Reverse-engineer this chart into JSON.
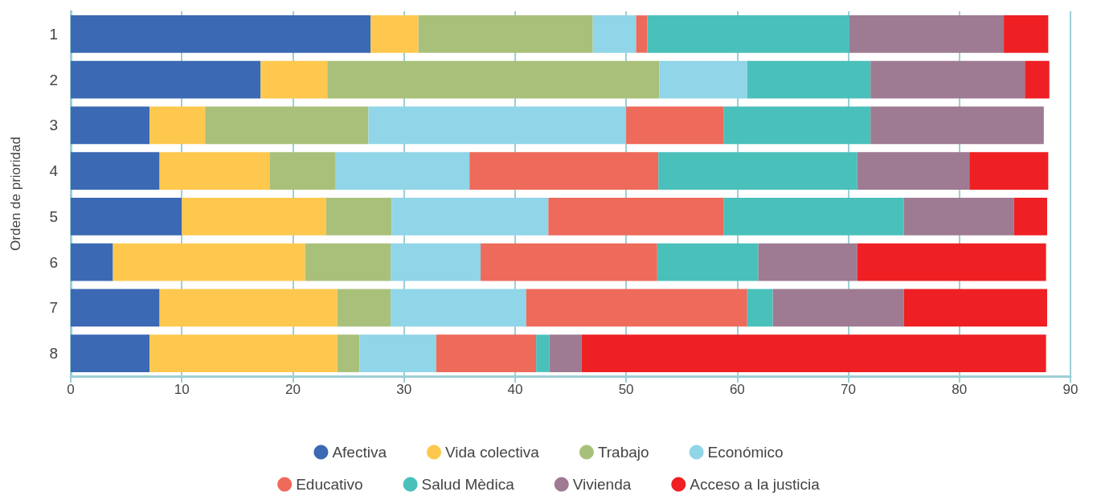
{
  "chart_data": {
    "type": "bar",
    "orientation": "horizontal",
    "stacked": true,
    "ylabel": "Orden de prioridad",
    "categories": [
      "1",
      "2",
      "3",
      "4",
      "5",
      "6",
      "7",
      "8"
    ],
    "series": [
      {
        "name": "Afectiva",
        "color": "#3b69b3",
        "values": [
          27,
          17.1,
          7.1,
          8.0,
          10.0,
          3.8,
          8.0,
          7.1
        ]
      },
      {
        "name": "Vida colectiva",
        "color": "#fec84e",
        "values": [
          4.3,
          6.0,
          5.0,
          9.9,
          13.0,
          17.3,
          16.0,
          16.9
        ]
      },
      {
        "name": "Trabajo",
        "color": "#a9c07a",
        "values": [
          15.7,
          29.9,
          14.7,
          5.9,
          5.9,
          7.7,
          4.8,
          2.0
        ]
      },
      {
        "name": "Económico",
        "color": "#90d5e8",
        "values": [
          3.9,
          7.9,
          23.2,
          12.1,
          14.1,
          8.1,
          12.2,
          6.9
        ]
      },
      {
        "name": "Educativo",
        "color": "#ee6a5a",
        "values": [
          1.0,
          0,
          8.8,
          17.0,
          15.8,
          15.9,
          19.9,
          9.0
        ]
      },
      {
        "name": "Salud Mèdica",
        "color": "#4ac0bb",
        "values": [
          18.2,
          11.1,
          13.2,
          17.9,
          16.2,
          9.1,
          2.3,
          1.2
        ]
      },
      {
        "name": "Vivienda",
        "color": "#9e7b92",
        "values": [
          13.9,
          13.9,
          15.6,
          10.1,
          9.9,
          8.9,
          11.8,
          2.9
        ]
      },
      {
        "name": "Acceso a la justicia",
        "color": "#ee2024",
        "values": [
          4.0,
          2.2,
          0,
          7.1,
          3.0,
          17.0,
          12.9,
          41.8
        ]
      }
    ],
    "xlim": [
      0,
      90
    ],
    "xticks": [
      0,
      10,
      20,
      30,
      40,
      50,
      60,
      70,
      80,
      90
    ],
    "grid": "x",
    "legend": "bottom"
  }
}
